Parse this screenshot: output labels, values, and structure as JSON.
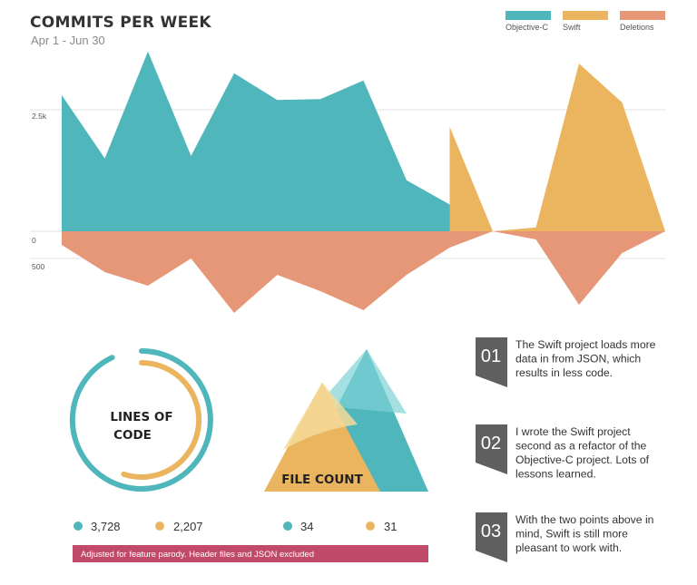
{
  "header": {
    "title": "COMMITS PER WEEK",
    "subtitle": "Apr 1 - Jun 30"
  },
  "colors": {
    "objc": "#4fb6bb",
    "swift": "#ebb45f",
    "deletions": "#e69777",
    "banner": "#c14a6b",
    "note_badge": "#5f5f5f"
  },
  "chart_data": [
    {
      "type": "area",
      "title": "COMMITS PER WEEK",
      "subtitle": "Apr 1 - Jun 30",
      "y_tick_labels_top": [
        "2.5k",
        "0"
      ],
      "y_tick_labels_bottom": [
        "500"
      ],
      "ylim_top": [
        0,
        4500
      ],
      "ylim_bottom": [
        0,
        2200
      ],
      "legend": [
        "Objective-C",
        "Swift",
        "Deletions"
      ],
      "legend_position": "top-right",
      "grid": true,
      "series": [
        {
          "name": "Objective-C",
          "color": "#4fb6bb",
          "points": [
            [
              0,
              2800
            ],
            [
              1,
              1500
            ],
            [
              2,
              3700
            ],
            [
              3,
              1550
            ],
            [
              4,
              3250
            ],
            [
              5,
              2700
            ],
            [
              6,
              2720
            ],
            [
              7,
              3100
            ],
            [
              8,
              1050
            ],
            [
              9,
              550
            ]
          ]
        },
        {
          "name": "Swift",
          "color": "#ebb45f",
          "points": [
            [
              9,
              0
            ],
            [
              9,
              2150
            ],
            [
              10,
              0
            ],
            [
              11,
              80
            ],
            [
              12,
              3450
            ],
            [
              13,
              2650
            ],
            [
              14,
              0
            ]
          ]
        },
        {
          "name": "Deletions",
          "color": "#e69777",
          "points": [
            [
              0,
              250
            ],
            [
              1,
              750
            ],
            [
              2,
              1000
            ],
            [
              3,
              500
            ],
            [
              4,
              1500
            ],
            [
              5,
              800
            ],
            [
              6,
              1100
            ],
            [
              7,
              1450
            ],
            [
              8,
              800
            ],
            [
              9,
              300
            ],
            [
              10,
              0
            ],
            [
              11,
              150
            ],
            [
              12,
              1350
            ],
            [
              13,
              400
            ],
            [
              14,
              0
            ]
          ]
        }
      ]
    },
    {
      "type": "donut",
      "title": "LINES OF CODE",
      "series": [
        {
          "name": "Objective-C",
          "value": 3728,
          "label": "3,728",
          "color": "#4fb6bb"
        },
        {
          "name": "Swift",
          "value": 2207,
          "label": "2,207",
          "color": "#ebb45f"
        }
      ]
    },
    {
      "type": "triangle-area",
      "title": "FILE COUNT",
      "series": [
        {
          "name": "Objective-C",
          "value": 34,
          "label": "34",
          "color": "#4fb6bb"
        },
        {
          "name": "Swift",
          "value": 31,
          "label": "31",
          "color": "#ebb45f"
        }
      ]
    }
  ],
  "footnote": "Adjusted for feature parody. Header files and JSON excluded",
  "notes": [
    {
      "num": "01",
      "lines": [
        "The Swift project loads more",
        "data in from JSON, which",
        "results in less code."
      ]
    },
    {
      "num": "02",
      "lines": [
        "I wrote the Swift project",
        "second as a refactor of the",
        "Objective-C project. Lots of",
        "lessons learned."
      ]
    },
    {
      "num": "03",
      "lines": [
        "With the two points above in",
        "mind, Swift is still more",
        "pleasant to work with."
      ]
    }
  ]
}
